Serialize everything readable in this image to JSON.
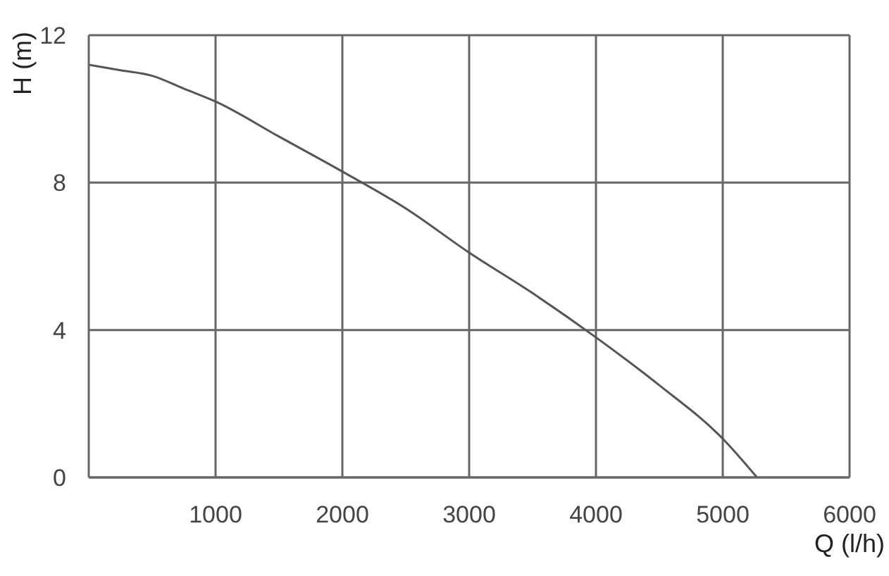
{
  "chart_data": {
    "type": "line",
    "xlabel": "Q (l/h)",
    "ylabel": "H (m)",
    "x": [
      0,
      250,
      500,
      750,
      1000,
      1500,
      2000,
      2500,
      3000,
      3500,
      4000,
      4500,
      5000,
      5270
    ],
    "series": [
      {
        "color": "#555555",
        "values": [
          11.2,
          11.05,
          10.9,
          10.55,
          10.2,
          9.25,
          8.3,
          7.3,
          6.1,
          5.0,
          3.8,
          2.5,
          1.05,
          0
        ]
      }
    ],
    "xlim": [
      0,
      6000
    ],
    "ylim": [
      0,
      12
    ],
    "xticks": [
      1000,
      2000,
      3000,
      4000,
      5000,
      6000
    ],
    "yticks": [
      0,
      4,
      8,
      12
    ],
    "grid": true,
    "marker": "none",
    "line_style": "solid"
  }
}
